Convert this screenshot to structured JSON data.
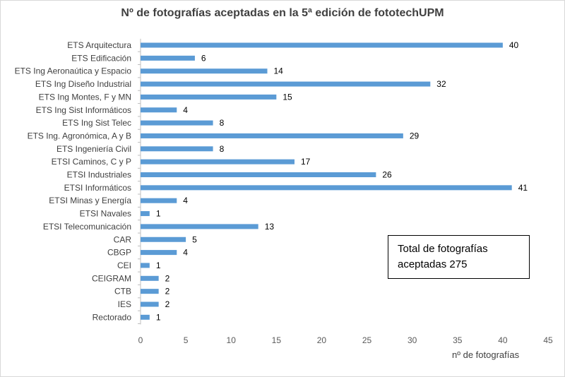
{
  "chart_data": {
    "type": "bar",
    "orientation": "horizontal",
    "title": "Nº de fotografías aceptadas en la 5ª edición de fototechUPM",
    "xlabel": "nº de fotografías",
    "ylabel": "",
    "xlim": [
      0,
      45
    ],
    "x_ticks": [
      0,
      5,
      10,
      15,
      20,
      25,
      30,
      35,
      40,
      45
    ],
    "grid": false,
    "bar_color": "#5b9bd5",
    "categories": [
      "ETS Arquitectura",
      "ETS Edificación",
      "ETS Ing Aeronaútica y Espacio",
      "ETS Ing Diseño Industrial",
      "ETS Ing Montes, F y MN",
      "ETS Ing Sist Informáticos",
      "ETS Ing Sist Telec",
      "ETS Ing. Agronómica, A y B",
      "ETS Ingeniería Civil",
      "ETSI Caminos, C y P",
      "ETSI Industriales",
      "ETSI Informáticos",
      "ETSI Minas y Energía",
      "ETSI Navales",
      "ETSI Telecomunicación",
      "CAR",
      "CBGP",
      "CEI",
      "CEIGRAM",
      "CTB",
      "IES",
      "Rectorado"
    ],
    "values": [
      40,
      6,
      14,
      32,
      15,
      4,
      8,
      29,
      8,
      17,
      26,
      41,
      4,
      1,
      13,
      5,
      4,
      1,
      2,
      2,
      2,
      1
    ],
    "annotation": "Total de fotografías aceptadas 275"
  },
  "annotation_lines": [
    "Total de fotografías",
    "aceptadas 275"
  ]
}
